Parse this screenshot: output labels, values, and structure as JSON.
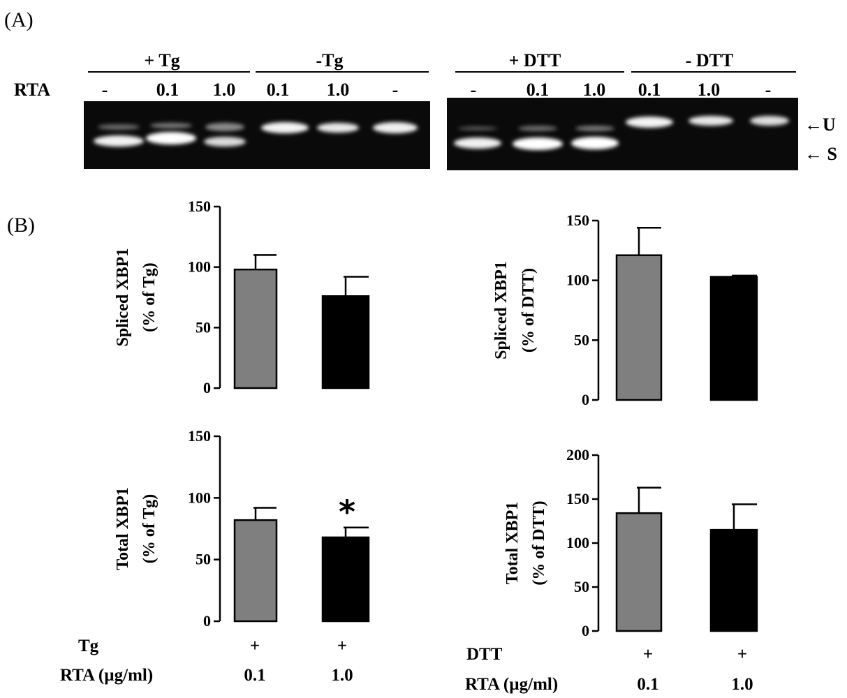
{
  "panel_a": {
    "label": "(A)",
    "row_label": "RTA",
    "groups": [
      {
        "label": "+ Tg",
        "lanes": [
          "-",
          "0.1",
          "1.0"
        ]
      },
      {
        "label": "-Tg",
        "lanes": [
          "0.1",
          "1.0",
          "-"
        ]
      },
      {
        "label": "+ DTT",
        "lanes": [
          "-",
          "0.1",
          "1.0"
        ]
      },
      {
        "label": "- DTT",
        "lanes": [
          "0.1",
          "1.0",
          "-"
        ]
      }
    ],
    "band_labels": {
      "upper": "←U",
      "lower": "← S"
    }
  },
  "panel_b": {
    "label": "(B)",
    "left_conditions": {
      "row1_label": "Tg",
      "row1_values": [
        "+",
        "+"
      ],
      "row2_label": "RTA (µg/ml)",
      "row2_values": [
        "0.1",
        "1.0"
      ]
    },
    "right_conditions": {
      "row1_label": "DTT",
      "row1_values": [
        "+",
        "+"
      ],
      "row2_label": "RTA (µg/ml)",
      "row2_values": [
        "0.1",
        "1.0"
      ]
    }
  },
  "colors": {
    "bar_gray": "#7f7f7f",
    "bar_black": "#000000",
    "gel_bg": "#0a0a0a",
    "band": "#f4f4f4"
  },
  "chart_data": [
    {
      "type": "bar",
      "ylabel_line1": "Spliced XBP1",
      "ylabel_line2": "(% of Tg)",
      "ylim": [
        0,
        150
      ],
      "yticks": [
        0,
        50,
        100,
        150
      ],
      "categories": [
        "0.1",
        "1.0"
      ],
      "values": [
        98,
        76
      ],
      "errors": [
        12,
        16
      ],
      "annotations": [
        "",
        ""
      ]
    },
    {
      "type": "bar",
      "ylabel_line1": "Spliced XBP1",
      "ylabel_line2": "(% of DTT)",
      "ylim": [
        0,
        150
      ],
      "yticks": [
        0,
        50,
        100,
        150
      ],
      "categories": [
        "0.1",
        "1.0"
      ],
      "values": [
        121,
        103
      ],
      "errors": [
        23,
        1
      ],
      "annotations": [
        "",
        ""
      ]
    },
    {
      "type": "bar",
      "ylabel_line1": "Total XBP1",
      "ylabel_line2": "(% of Tg)",
      "ylim": [
        0,
        150
      ],
      "yticks": [
        0,
        50,
        100,
        150
      ],
      "categories": [
        "0.1",
        "1.0"
      ],
      "values": [
        82,
        68
      ],
      "errors": [
        10,
        8
      ],
      "annotations": [
        "",
        "*"
      ]
    },
    {
      "type": "bar",
      "ylabel_line1": "Total XBP1",
      "ylabel_line2": "(% of DTT)",
      "ylim": [
        0,
        200
      ],
      "yticks": [
        0,
        50,
        100,
        150,
        200
      ],
      "categories": [
        "0.1",
        "1.0"
      ],
      "values": [
        134,
        115
      ],
      "errors": [
        29,
        29
      ],
      "annotations": [
        "",
        ""
      ]
    }
  ]
}
